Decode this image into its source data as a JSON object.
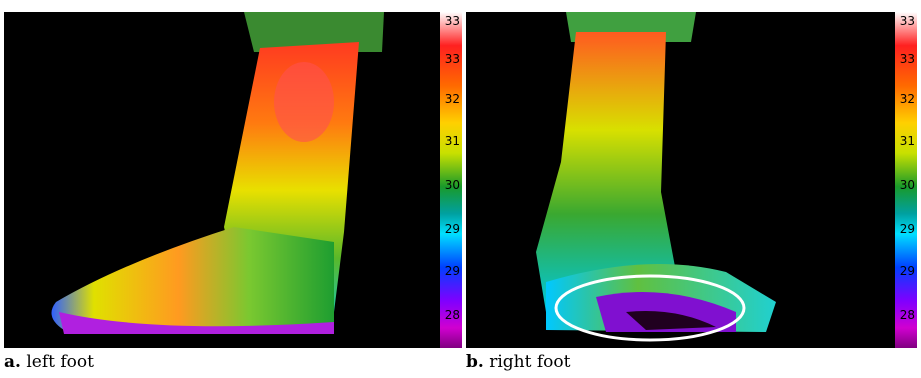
{
  "panels": [
    {
      "letter": "a.",
      "caption": " left foot",
      "scale_labels": [
        "33",
        "33",
        "32",
        "31",
        "30",
        "29",
        "29",
        "28"
      ]
    },
    {
      "letter": "b.",
      "caption": " right foot",
      "scale_labels": [
        "33",
        "33",
        "32",
        "31",
        "30",
        "29",
        "29",
        "28"
      ]
    }
  ],
  "colors": {
    "hot": "#ff2020",
    "warm": "#ffd000",
    "mid": "#1a9a2a",
    "cool": "#00e0ff",
    "cold": "#8000ff",
    "highlight_ring": "#ffffff"
  }
}
